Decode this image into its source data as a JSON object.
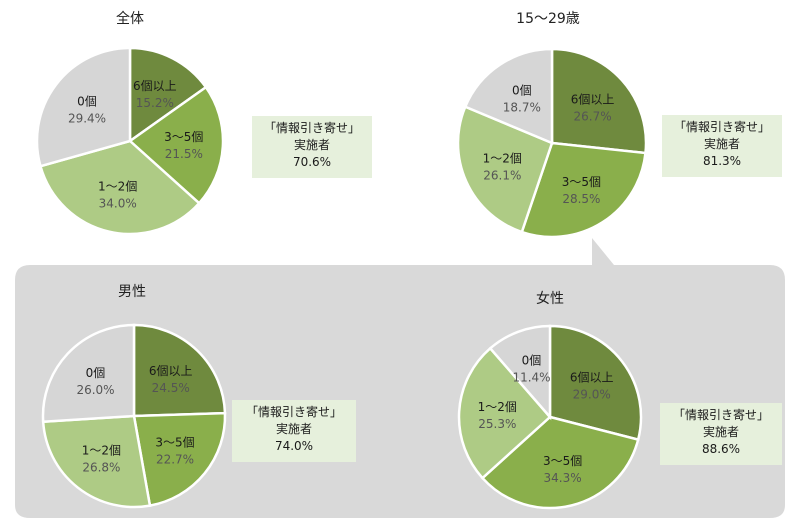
{
  "colors": {
    "six_plus": "#6f8a3e",
    "three_to_five": "#8aaf4b",
    "one_to_two": "#aecb85",
    "zero": "#d6d6d6",
    "panel_bg": "#d9d9d9",
    "callout_bg": "#e6f0dc"
  },
  "chart_data": [
    {
      "type": "pie",
      "title": "全体",
      "slices": [
        {
          "label": "6個以上",
          "value": 15.2
        },
        {
          "label": "3～5個",
          "value": 21.5
        },
        {
          "label": "1～2個",
          "value": 34.0
        },
        {
          "label": "0個",
          "value": 29.4
        }
      ],
      "callout": {
        "line1": "「情報引き寄せ」",
        "line2": "実施者",
        "line3": "70.6%"
      }
    },
    {
      "type": "pie",
      "title": "15～29歳",
      "slices": [
        {
          "label": "6個以上",
          "value": 26.7
        },
        {
          "label": "3～5個",
          "value": 28.5
        },
        {
          "label": "1～2個",
          "value": 26.1
        },
        {
          "label": "0個",
          "value": 18.7
        }
      ],
      "callout": {
        "line1": "「情報引き寄せ」",
        "line2": "実施者",
        "line3": "81.3%"
      }
    },
    {
      "type": "pie",
      "title": "男性",
      "slices": [
        {
          "label": "6個以上",
          "value": 24.5
        },
        {
          "label": "3～5個",
          "value": 22.7
        },
        {
          "label": "1～2個",
          "value": 26.8
        },
        {
          "label": "0個",
          "value": 26.0
        }
      ],
      "callout": {
        "line1": "「情報引き寄せ」",
        "line2": "実施者",
        "line3": "74.0%"
      }
    },
    {
      "type": "pie",
      "title": "女性",
      "slices": [
        {
          "label": "6個以上",
          "value": 29.0
        },
        {
          "label": "3～5個",
          "value": 34.3
        },
        {
          "label": "1～2個",
          "value": 25.3
        },
        {
          "label": "0個",
          "value": 11.4
        }
      ],
      "callout": {
        "line1": "「情報引き寄せ」",
        "line2": "実施者",
        "line3": "88.6%"
      }
    }
  ]
}
